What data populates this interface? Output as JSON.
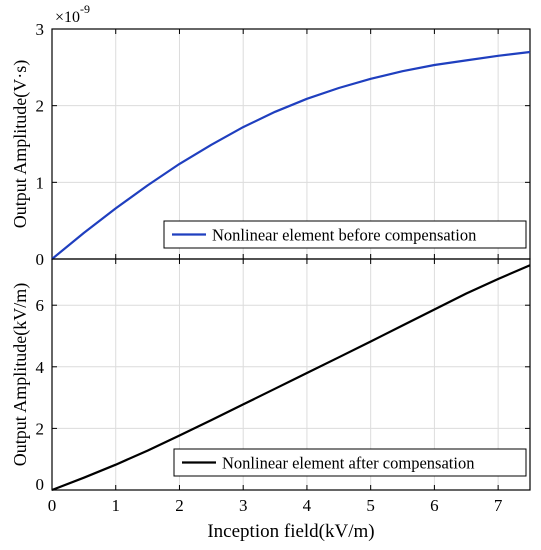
{
  "chart_data": [
    {
      "type": "line",
      "title": "",
      "xlabel": "",
      "ylabel": "Output Amplitude(V·s)",
      "exponent_label": "×10",
      "exponent_power": "-9",
      "xlim": [
        0,
        7.5
      ],
      "ylim": [
        0,
        3
      ],
      "xticks": [
        0,
        1,
        2,
        3,
        4,
        5,
        6,
        7
      ],
      "yticks": [
        0,
        1,
        2,
        3
      ],
      "xtick_labels_visible": false,
      "grid": true,
      "legend_position": "bottom-right",
      "series": [
        {
          "name": "Nonlinear element before compensation",
          "color": "#1f3fbf",
          "x": [
            0,
            0.5,
            1,
            1.5,
            2,
            2.5,
            3,
            3.5,
            4,
            4.5,
            5,
            5.5,
            6,
            6.5,
            7,
            7.5
          ],
          "y": [
            0,
            0.34,
            0.66,
            0.96,
            1.24,
            1.49,
            1.72,
            1.92,
            2.09,
            2.23,
            2.35,
            2.45,
            2.53,
            2.59,
            2.65,
            2.7
          ]
        }
      ]
    },
    {
      "type": "line",
      "title": "",
      "xlabel": "Inception field(kV/m)",
      "ylabel": "Output Amplitude(kV/m)",
      "xlim": [
        0,
        7.5
      ],
      "ylim": [
        0,
        7.5
      ],
      "xticks": [
        0,
        1,
        2,
        3,
        4,
        5,
        6,
        7
      ],
      "yticks": [
        0,
        2,
        4,
        6
      ],
      "xtick_labels_visible": true,
      "grid": true,
      "legend_position": "bottom-right",
      "series": [
        {
          "name": "Nonlinear element after compensation",
          "color": "#000000",
          "x": [
            0,
            0.5,
            1,
            1.5,
            2,
            2.5,
            3,
            3.5,
            4,
            4.5,
            5,
            5.5,
            6,
            6.5,
            7,
            7.5
          ],
          "y": [
            0,
            0.4,
            0.82,
            1.28,
            1.77,
            2.27,
            2.78,
            3.29,
            3.8,
            4.31,
            4.82,
            5.34,
            5.86,
            6.38,
            6.85,
            7.3
          ]
        }
      ]
    }
  ]
}
